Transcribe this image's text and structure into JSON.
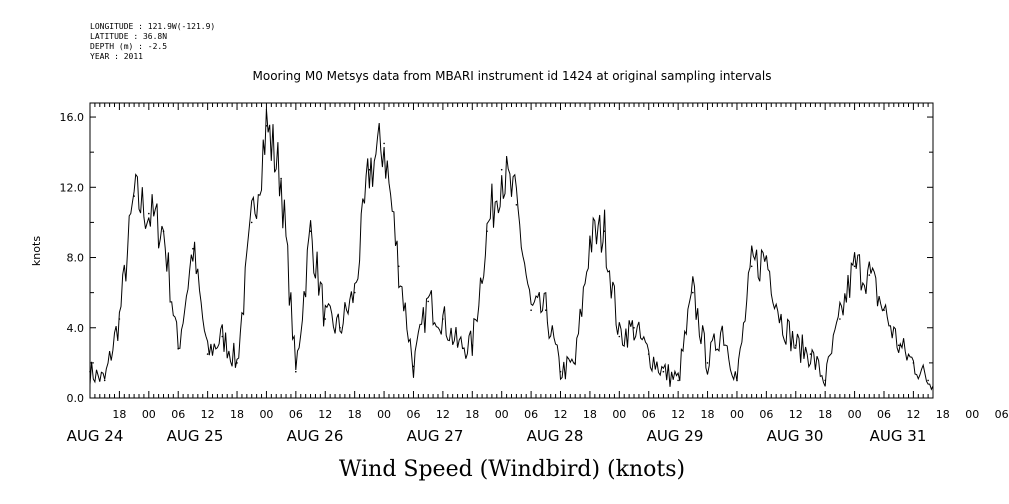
{
  "meta": {
    "longitude": "LONGITUDE : 121.9W(-121.9)",
    "latitude": "LATITUDE : 36.8N",
    "depth": "DEPTH (m) : -2.5",
    "year": "YEAR : 2011"
  },
  "chart_data": {
    "type": "line",
    "title": "Mooring M0 Metsys data from MBARI instrument id 1424 at original sampling intervals",
    "xlabel": "Wind Speed (Windbird) (knots)",
    "ylabel": "knots",
    "ylim": [
      0,
      16.8
    ],
    "xlim": [
      "AUG 24 12:00",
      "AUG 31 16:00"
    ],
    "yticks": [
      "0.0",
      "4.0",
      "8.0",
      "12.0",
      "16.0"
    ],
    "hour_ticks": [
      "18",
      "00",
      "06",
      "12",
      "18",
      "00",
      "06",
      "12",
      "18",
      "00",
      "06",
      "12",
      "18",
      "00",
      "06",
      "12",
      "18",
      "00",
      "06",
      "12",
      "18",
      "00",
      "06",
      "12",
      "18",
      "00",
      "06",
      "12",
      "18",
      "00",
      "06",
      "12"
    ],
    "day_labels": [
      "AUG 24",
      "AUG 25",
      "AUG 26",
      "AUG 27",
      "AUG 28",
      "AUG 29",
      "AUG 30",
      "AUG 31"
    ],
    "grid": false,
    "series": [
      {
        "x": [
          "AUG 24 12:00",
          "AUG 24 15:00",
          "AUG 24 18:00",
          "AUG 24 21:00",
          "AUG 25 00:00",
          "AUG 25 03:00",
          "AUG 25 06:00",
          "AUG 25 09:00",
          "AUG 25 12:00",
          "AUG 25 15:00",
          "AUG 25 18:00",
          "AUG 25 21:00",
          "AUG 26 00:00",
          "AUG 26 03:00",
          "AUG 26 06:00",
          "AUG 26 09:00",
          "AUG 26 12:00",
          "AUG 26 15:00",
          "AUG 26 18:00",
          "AUG 26 21:00",
          "AUG 27 00:00",
          "AUG 27 03:00",
          "AUG 27 06:00",
          "AUG 27 09:00",
          "AUG 27 12:00",
          "AUG 27 15:00",
          "AUG 27 18:00",
          "AUG 27 21:00",
          "AUG 28 00:00",
          "AUG 28 03:00",
          "AUG 28 06:00",
          "AUG 28 09:00",
          "AUG 28 12:00",
          "AUG 28 15:00",
          "AUG 28 18:00",
          "AUG 28 21:00",
          "AUG 29 00:00",
          "AUG 29 03:00",
          "AUG 29 06:00",
          "AUG 29 09:00",
          "AUG 29 12:00",
          "AUG 29 15:00",
          "AUG 29 18:00",
          "AUG 29 21:00",
          "AUG 30 00:00",
          "AUG 30 03:00",
          "AUG 30 06:00",
          "AUG 30 09:00",
          "AUG 30 12:00",
          "AUG 30 15:00",
          "AUG 30 18:00",
          "AUG 30 21:00",
          "AUG 31 00:00",
          "AUG 31 03:00",
          "AUG 31 06:00",
          "AUG 31 09:00",
          "AUG 31 12:00",
          "AUG 31 15:00"
        ],
        "y": [
          1.5,
          1.0,
          4.5,
          11.5,
          10.5,
          9.5,
          2.8,
          8.5,
          2.5,
          3.5,
          2.0,
          10.0,
          15.5,
          12.5,
          1.5,
          9.5,
          4.5,
          4.0,
          6.0,
          13.0,
          14.5,
          7.5,
          1.8,
          5.5,
          4.5,
          3.0,
          3.0,
          9.5,
          13.0,
          11.0,
          5.0,
          5.0,
          1.5,
          2.0,
          9.0,
          9.5,
          3.5,
          4.0,
          2.5,
          1.5,
          1.0,
          6.0,
          2.0,
          4.0,
          1.0,
          7.5,
          8.0,
          4.5,
          3.0,
          2.5,
          1.0,
          4.5,
          7.5,
          7.0,
          5.0,
          3.0,
          2.0,
          1.0
        ]
      }
    ]
  }
}
